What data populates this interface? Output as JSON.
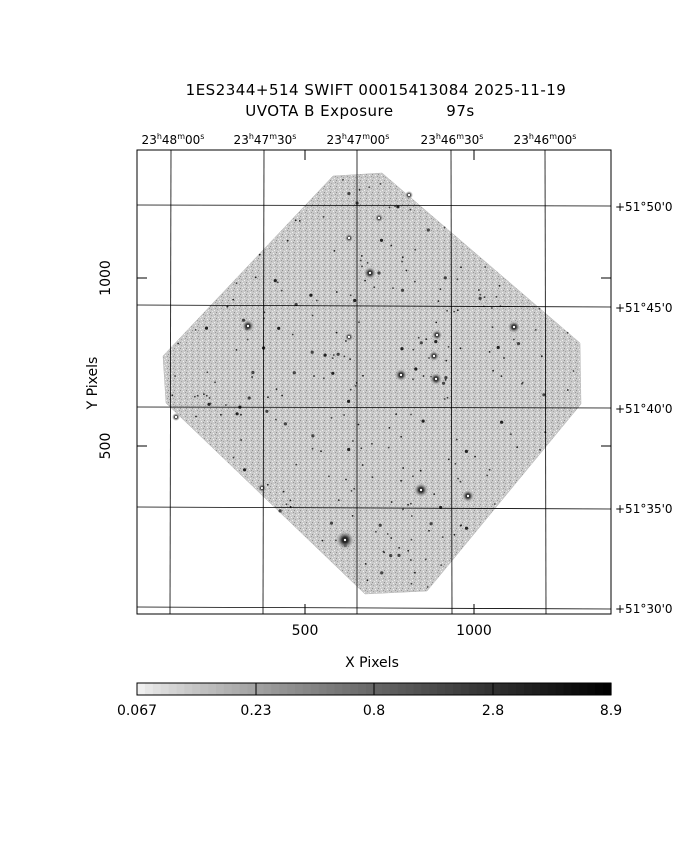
{
  "header": {
    "line1": "1ES2344+514 SWIFT 00015413084 2025-11-19",
    "line2": "UVOTA B Exposure          97s"
  },
  "ra_labels": [
    {
      "h": "23",
      "m": "48",
      "s": "00"
    },
    {
      "h": "23",
      "m": "47",
      "s": "30"
    },
    {
      "h": "23",
      "m": "47",
      "s": "00"
    },
    {
      "h": "23",
      "m": "46",
      "s": "30"
    },
    {
      "h": "23",
      "m": "46",
      "s": "00"
    }
  ],
  "ra_units": {
    "h": "h",
    "m": "m",
    "s": "s"
  },
  "dec_labels": [
    "+51°50'0",
    "+51°45'0",
    "+51°40'0",
    "+51°35'0",
    "+51°30'0"
  ],
  "y_axis": {
    "label": "Y Pixels",
    "ticks": [
      "1000",
      "500"
    ]
  },
  "x_axis": {
    "label": "X Pixels",
    "ticks": [
      "500",
      "1000"
    ]
  },
  "colorbar": {
    "labels": [
      "0.067",
      "0.23",
      "0.8",
      "2.8",
      "8.9"
    ]
  },
  "image": {
    "exposure_s": 97,
    "filter": "B",
    "instrument": "UVOTA"
  }
}
